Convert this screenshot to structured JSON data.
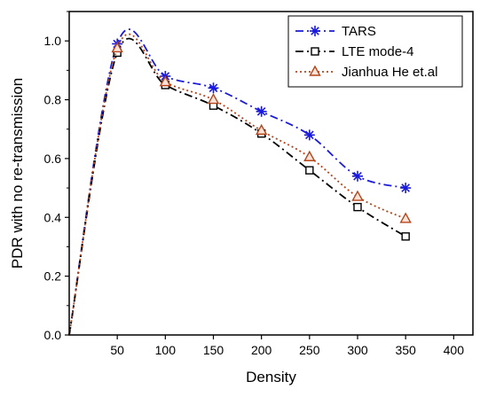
{
  "chart_data": {
    "type": "line",
    "xlabel": "Density",
    "ylabel": "PDR with no re-transmission",
    "xlim": [
      0,
      420
    ],
    "ylim": [
      0,
      1.1
    ],
    "xticks": [
      50,
      100,
      150,
      200,
      250,
      300,
      350,
      400
    ],
    "yticks": [
      0.0,
      0.2,
      0.4,
      0.6,
      0.8,
      1.0
    ],
    "x": [
      50,
      100,
      150,
      200,
      250,
      300,
      350
    ],
    "grid": false,
    "legend_position": "top-right",
    "series": [
      {
        "name": "TARS",
        "values": [
          0.99,
          0.88,
          0.84,
          0.76,
          0.68,
          0.54,
          0.5
        ],
        "color": "#1a1adc",
        "dash": "dash-dot",
        "marker": "asterisk"
      },
      {
        "name": "LTE mode-4",
        "values": [
          0.96,
          0.85,
          0.78,
          0.685,
          0.56,
          0.435,
          0.335
        ],
        "color": "#000000",
        "dash": "dash-dot",
        "marker": "square"
      },
      {
        "name": "Jianhua He et.al",
        "values": [
          0.975,
          0.86,
          0.8,
          0.695,
          0.605,
          0.47,
          0.395
        ],
        "color": "#b5451b",
        "dash": "dot",
        "marker": "triangle"
      }
    ]
  }
}
